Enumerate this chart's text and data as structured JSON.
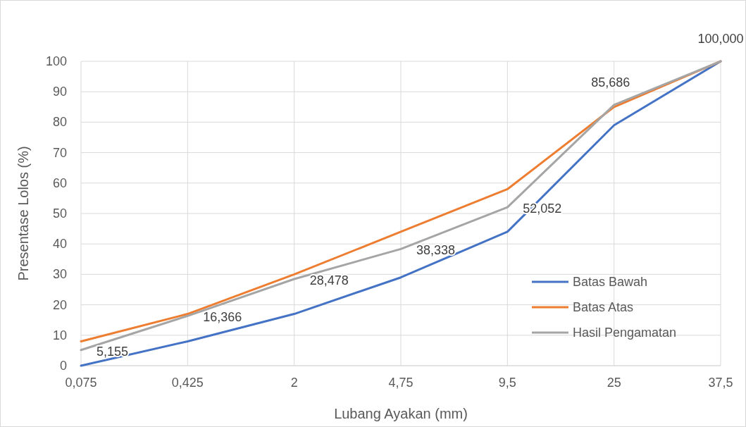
{
  "chart_data": {
    "type": "line",
    "xlabel": "Lubang Ayakan (mm)",
    "ylabel": "Presentase Lolos (%)",
    "categories": [
      "0,075",
      "0,425",
      "2",
      "4,75",
      "9,5",
      "25",
      "37,5"
    ],
    "ylim": [
      0,
      100
    ],
    "yticks": [
      0,
      10,
      20,
      30,
      40,
      50,
      60,
      70,
      80,
      90,
      100
    ],
    "grid": true,
    "legend": "right",
    "marker": "none",
    "line_style": "solid",
    "series": [
      {
        "name": "Batas Bawah",
        "color": "#4472c4",
        "values": [
          0,
          8,
          17,
          29,
          44,
          79,
          100
        ]
      },
      {
        "name": "Batas Atas",
        "color": "#ed7d31",
        "values": [
          8,
          17,
          30,
          44,
          58,
          85,
          100
        ]
      },
      {
        "name": "Hasil Pengamatan",
        "color": "#a5a5a5",
        "values": [
          5.155,
          16.366,
          28.478,
          38.338,
          52.052,
          85.686,
          100
        ],
        "value_labels": [
          "5,155",
          "16,366",
          "28,478",
          "38,338",
          "52,052",
          "85,686",
          "100,000"
        ]
      }
    ]
  }
}
